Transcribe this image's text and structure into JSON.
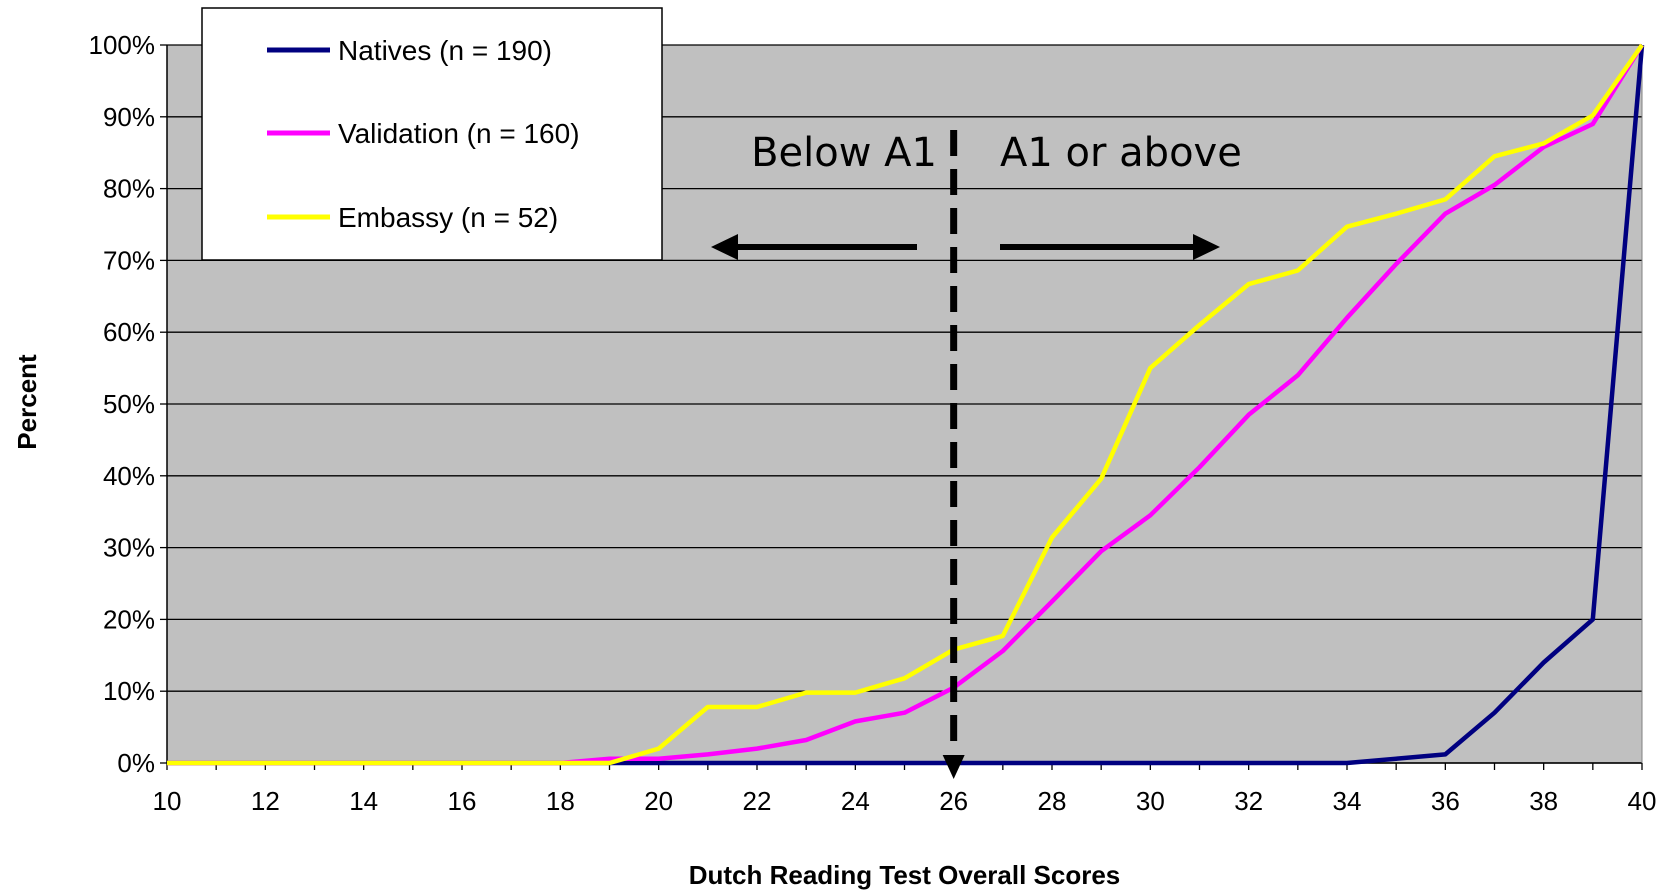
{
  "chart_data": {
    "type": "line",
    "title": "",
    "xlabel": "Dutch Reading Test Overall Scores",
    "ylabel": "Percent",
    "xlim": [
      10,
      40
    ],
    "ylim": [
      0,
      100
    ],
    "x_ticks": [
      10,
      12,
      14,
      16,
      18,
      20,
      22,
      24,
      26,
      28,
      30,
      32,
      34,
      36,
      38,
      40
    ],
    "y_ticks": [
      0,
      10,
      20,
      30,
      40,
      50,
      60,
      70,
      80,
      90,
      100
    ],
    "y_tick_labels": [
      "0%",
      "10%",
      "20%",
      "30%",
      "40%",
      "50%",
      "60%",
      "70%",
      "80%",
      "90%",
      "100%"
    ],
    "grid": true,
    "plot_background": "#c0c0c0",
    "legend_position": "top-left",
    "x": [
      10,
      11,
      12,
      13,
      14,
      15,
      16,
      17,
      18,
      19,
      20,
      21,
      22,
      23,
      24,
      25,
      26,
      27,
      28,
      29,
      30,
      31,
      32,
      33,
      34,
      35,
      36,
      37,
      38,
      39,
      40
    ],
    "series": [
      {
        "name": "Natives (n = 190)",
        "color": "#000080",
        "values": [
          0,
          0,
          0,
          0,
          0,
          0,
          0,
          0,
          0,
          0,
          0,
          0,
          0,
          0,
          0,
          0,
          0,
          0,
          0,
          0,
          0,
          0,
          0,
          0,
          0,
          0.6,
          1.2,
          7,
          14,
          20,
          100
        ]
      },
      {
        "name": "Validation (n = 160)",
        "color": "#ff00ff",
        "values": [
          0,
          0,
          0,
          0,
          0,
          0,
          0,
          0,
          0,
          0.6,
          0.6,
          1.2,
          2,
          3.2,
          5.8,
          7,
          10.5,
          15.6,
          22.5,
          29.5,
          34.5,
          41.2,
          48.5,
          54,
          62,
          69.5,
          76.5,
          80.5,
          85.8,
          89,
          100
        ]
      },
      {
        "name": "Embassy (n = 52)",
        "color": "#ffff00",
        "values": [
          0,
          0,
          0,
          0,
          0,
          0,
          0,
          0,
          0,
          0,
          2,
          7.8,
          7.8,
          9.8,
          9.8,
          11.8,
          15.8,
          17.7,
          31.4,
          39.6,
          55,
          61,
          66.7,
          68.6,
          74.7,
          76.5,
          78.5,
          84.5,
          86.3,
          90.2,
          100
        ]
      }
    ],
    "annotations": {
      "divider_x": 26,
      "left_text": "Below A1",
      "right_text": "A1 or above"
    }
  }
}
